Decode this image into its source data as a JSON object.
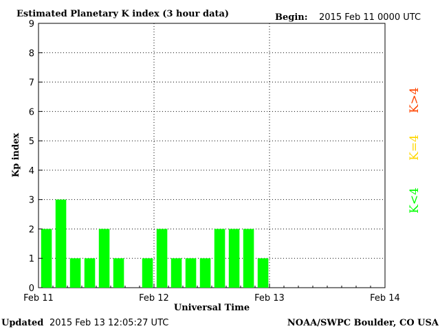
{
  "header": {
    "title": "Estimated Planetary K index (3 hour data)",
    "begin_label": "Begin:",
    "begin_value": "2015 Feb 11 0000 UTC"
  },
  "footer": {
    "updated_label": "Updated",
    "updated_value": "2015 Feb 13 12:05:27 UTC",
    "source": "NOAA/SWPC Boulder, CO USA"
  },
  "legend": {
    "items": [
      {
        "label": "K<4",
        "color": "#00ff00"
      },
      {
        "label": "K=4",
        "color": "#ffd700"
      },
      {
        "label": "K>4",
        "color": "#ff4500"
      }
    ]
  },
  "colors": {
    "bar": "#00ff00",
    "axis": "#000000",
    "grid": "#000000",
    "background": "#ffffff"
  },
  "chart_data": {
    "type": "bar",
    "title": "Estimated Planetary K index (3 hour data)",
    "xlabel": "Universal Time",
    "ylabel": "Kp index",
    "ylim": [
      0,
      9
    ],
    "yticks": [
      0,
      1,
      2,
      3,
      4,
      5,
      6,
      7,
      8,
      9
    ],
    "xlim": [
      "2015 Feb 11 0000 UTC",
      "2015 Feb 14 0000 UTC"
    ],
    "xticks": [
      {
        "label": "Feb 11",
        "day": 0
      },
      {
        "label": "Feb 12",
        "day": 1
      },
      {
        "label": "Feb 13",
        "day": 2
      },
      {
        "label": "Feb 14",
        "day": 3
      }
    ],
    "bin_hours": 3,
    "grid": "dotted",
    "series": [
      {
        "values": [
          2,
          3,
          1,
          1,
          2,
          1,
          0,
          1,
          2,
          1,
          1,
          1,
          2,
          2,
          2,
          1
        ]
      }
    ]
  }
}
